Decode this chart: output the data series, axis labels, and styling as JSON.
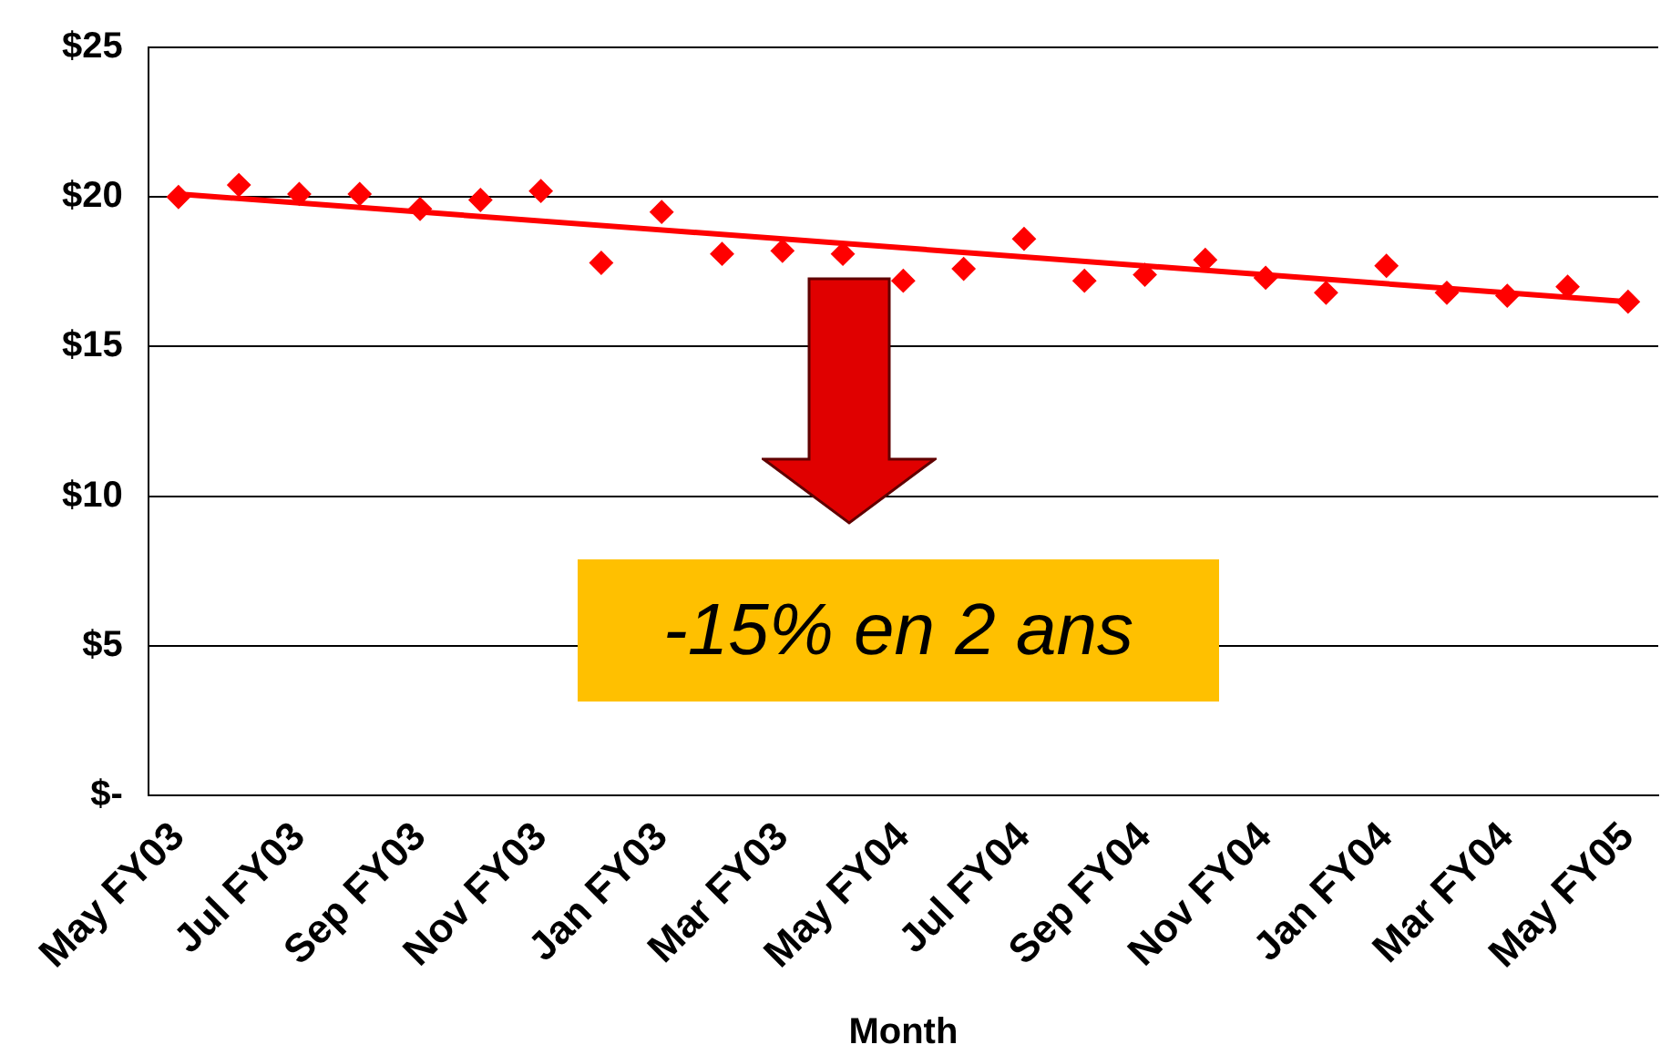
{
  "chart_data": {
    "type": "scatter",
    "xlabel": "Month",
    "categories": [
      "May FY03",
      null,
      "Jul FY03",
      null,
      "Sep FY03",
      null,
      "Nov FY03",
      null,
      "Jan FY03",
      null,
      "Mar FY03",
      null,
      "May FY04",
      null,
      "Jul FY04",
      null,
      "Sep FY04",
      null,
      "Nov FY04",
      null,
      "Jan FY04",
      null,
      "Mar FY04",
      null,
      "May FY05"
    ],
    "series": [
      {
        "type": "scatter",
        "color": "#ff0000",
        "marker": "diamond",
        "values": [
          20.0,
          20.4,
          20.1,
          20.1,
          19.6,
          19.9,
          20.2,
          17.8,
          19.5,
          18.1,
          18.2,
          18.1,
          17.2,
          17.6,
          18.6,
          17.2,
          17.4,
          17.9,
          17.3,
          16.8,
          17.7,
          16.8,
          16.7,
          17.0,
          16.5
        ]
      },
      {
        "type": "line",
        "color": "#ff0000",
        "marker": "none",
        "x": [
          "May FY03",
          "May FY05"
        ],
        "values": [
          20.1,
          16.5
        ]
      }
    ],
    "ylim": [
      0,
      25
    ],
    "yticks": [
      {
        "value": 0,
        "label": "$-"
      },
      {
        "value": 5,
        "label": "$5"
      },
      {
        "value": 10,
        "label": "$10"
      },
      {
        "value": 15,
        "label": "$15"
      },
      {
        "value": 20,
        "label": "$20"
      },
      {
        "value": 25,
        "label": "$25"
      }
    ],
    "grid": "y",
    "legend": false,
    "annotations": [
      "-15% en 2 ans"
    ]
  }
}
